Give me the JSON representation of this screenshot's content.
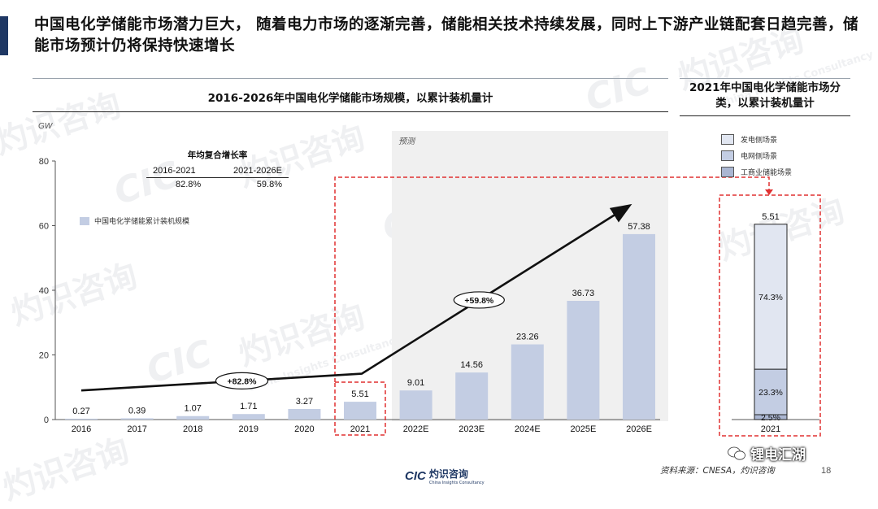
{
  "slide": {
    "title": "中国电化学储能市场潜力巨大，  随着电力市场的逐渐完善，储能相关技术持续发展，同时上下游产业链配套日趋完善，储能市场预计仍将保持快速增长",
    "page_number": "18",
    "source": "资料来源：CNESA，灼识咨询",
    "watermark_cn": "灼识咨询",
    "watermark_cic": "CIC",
    "watermark_en": "China Insights Consultancy",
    "footer_logo_cic": "CIC",
    "footer_logo_cn": "灼识咨询",
    "footer_logo_en": "China Insights Consultancy",
    "wechat_label": "锂电汇湖",
    "colors": {
      "accent": "#1f3864",
      "bar": "#c3cde3",
      "forecast_bg": "#f0f0f0",
      "highlight": "#e03131"
    }
  },
  "chart_data": [
    {
      "type": "bar",
      "title": "2016-2026年中国电化学储能市场规模，以累计装机量计",
      "unit": "GW",
      "forecast_label": "预测",
      "legend": [
        "中国电化学储能累计装机规模"
      ],
      "categories": [
        "2016",
        "2017",
        "2018",
        "2019",
        "2020",
        "2021",
        "2022E",
        "2023E",
        "2024E",
        "2025E",
        "2026E"
      ],
      "values": [
        0.27,
        0.39,
        1.07,
        1.71,
        3.27,
        5.51,
        9.01,
        14.56,
        23.26,
        36.73,
        57.38
      ],
      "value_labels": [
        "0.27",
        "0.39",
        "1.07",
        "1.71",
        "3.27",
        "5.51",
        "9.01",
        "14.56",
        "23.26",
        "36.73",
        "57.38"
      ],
      "ylim": [
        0,
        80
      ],
      "yticks": [
        "0",
        "20",
        "40",
        "60",
        "80"
      ],
      "ytick_values": [
        0,
        20,
        40,
        60,
        80
      ],
      "cagr": {
        "title": "年均复合增长率",
        "periods": [
          "2016-2021",
          "2021-2026E"
        ],
        "values": [
          "82.8%",
          "59.8%"
        ]
      },
      "growth_callouts": [
        "+82.8%",
        "+59.8%"
      ]
    },
    {
      "type": "bar",
      "title": "2021年中国电化学储能市场分类，以累计装机量计",
      "categories": [
        "2021"
      ],
      "total_label": "5.51",
      "series": [
        {
          "name": "工商业储能场景",
          "value": 2.5,
          "label": "2.5%",
          "color": "#aab6d2"
        },
        {
          "name": "电网侧场景",
          "value": 23.3,
          "label": "23.3%",
          "color": "#c3cde3"
        },
        {
          "name": "发电侧场景",
          "value": 74.3,
          "label": "74.3%",
          "color": "#e1e6f1"
        }
      ],
      "legend": [
        "发电侧场景",
        "电网侧场景",
        "工商业储能场景"
      ]
    }
  ]
}
